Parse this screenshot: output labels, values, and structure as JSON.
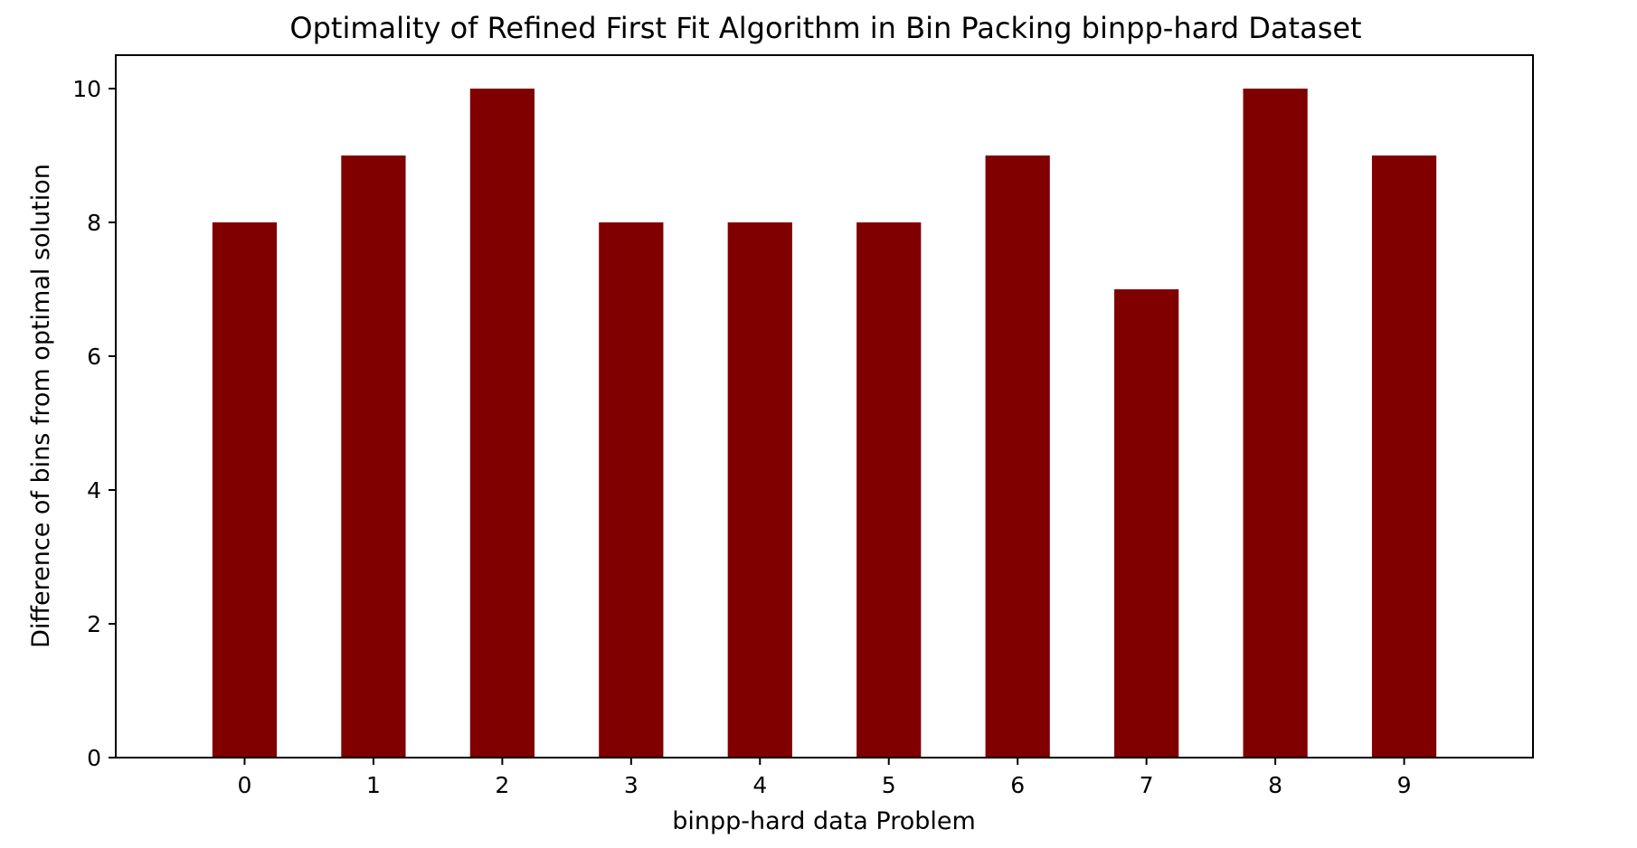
{
  "chart_data": {
    "type": "bar",
    "title": "Optimality of Refined First Fit Algorithm in Bin Packing binpp-hard Dataset",
    "xlabel": "binpp-hard data Problem",
    "ylabel": "Difference of bins from optimal solution",
    "categories": [
      "0",
      "1",
      "2",
      "3",
      "4",
      "5",
      "6",
      "7",
      "8",
      "9"
    ],
    "values": [
      8,
      9,
      10,
      8,
      8,
      8,
      9,
      7,
      10,
      9
    ],
    "ylim": [
      0,
      10.5
    ],
    "yticks": [
      "0",
      "2",
      "4",
      "6",
      "8",
      "10"
    ],
    "grid": false,
    "bar_color": "#800000"
  }
}
